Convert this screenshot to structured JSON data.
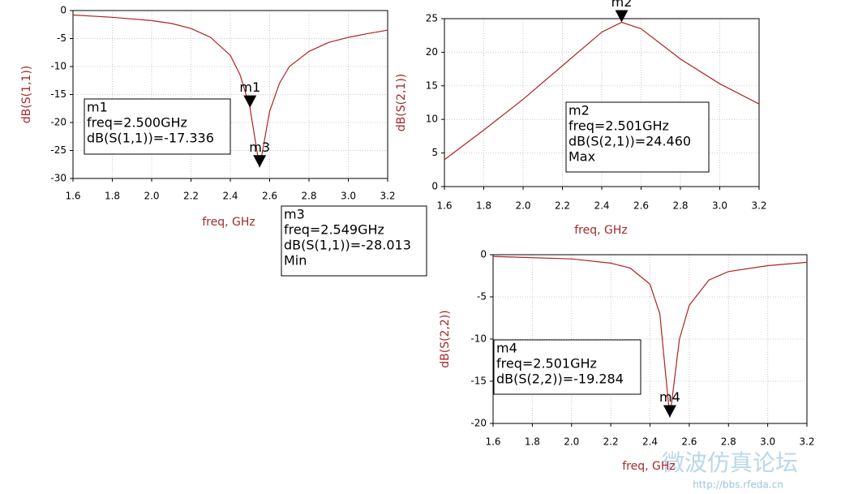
{
  "chart_data": [
    {
      "type": "line",
      "ylabel": "dB(S(1,1))",
      "xlabel": "freq, GHz",
      "color": "#b22222",
      "xlim": [
        1.6,
        3.2
      ],
      "ylim": [
        -30,
        0
      ],
      "xticks": [
        1.6,
        1.8,
        {
          "value": 2,
          "label": "2.0"
        },
        2.2,
        2.4,
        2.6,
        2.8,
        {
          "value": 3,
          "label": "3.0"
        },
        3.2
      ],
      "yticks": [
        0,
        -5,
        -10,
        -15,
        -20,
        -25,
        -30
      ],
      "grid": true,
      "x": [
        1.6,
        1.8,
        2.0,
        2.1,
        2.2,
        2.3,
        2.4,
        2.45,
        2.5,
        2.549,
        2.6,
        2.65,
        2.7,
        2.8,
        2.9,
        3.0,
        3.1,
        3.2
      ],
      "values": [
        -0.8,
        -1.2,
        -1.8,
        -2.3,
        -3.2,
        -4.8,
        -8,
        -11.5,
        -17.336,
        -28.013,
        -18,
        -13,
        -10,
        -7.3,
        -5.7,
        -4.8,
        -4.1,
        -3.5
      ],
      "markers": [
        {
          "name": "m1",
          "x": 2.5,
          "value": -17.336,
          "texts": [
            "freq=2.500GHz",
            "dB(S(1,1))=-17.336"
          ]
        },
        {
          "name": "m3",
          "x": 2.549,
          "value": -28.013,
          "texts": [
            "freq=2.549GHz",
            "dB(S(1,1))=-28.013",
            "Min"
          ]
        }
      ]
    },
    {
      "type": "line",
      "ylabel": "dB(S(2,1))",
      "xlabel": "freq, GHz",
      "color": "#b22222",
      "xlim": [
        1.6,
        3.2
      ],
      "ylim": [
        0,
        25
      ],
      "xticks": [
        1.6,
        1.8,
        {
          "value": 2,
          "label": "2.0"
        },
        2.2,
        2.4,
        2.6,
        2.8,
        {
          "value": 3,
          "label": "3.0"
        },
        3.2
      ],
      "yticks": [
        0,
        5,
        10,
        15,
        20,
        25
      ],
      "grid": true,
      "x": [
        1.6,
        1.8,
        2.0,
        2.2,
        2.4,
        2.501,
        2.6,
        2.8,
        3.0,
        3.2
      ],
      "values": [
        4,
        8.4,
        13,
        18,
        23,
        24.46,
        23.5,
        19,
        15.3,
        12.3
      ],
      "markers": [
        {
          "name": "m2",
          "x": 2.501,
          "value": 24.46,
          "texts": [
            "freq=2.501GHz",
            "dB(S(2,1))=24.460",
            "Max"
          ]
        }
      ]
    },
    {
      "type": "line",
      "ylabel": "dB(S(2,2))",
      "xlabel": "freq, GHz",
      "color": "#b22222",
      "xlim": [
        1.6,
        3.2
      ],
      "ylim": [
        -20,
        0
      ],
      "xticks": [
        1.6,
        1.8,
        {
          "value": 2,
          "label": "2.0"
        },
        2.2,
        2.4,
        2.6,
        2.8,
        {
          "value": 3,
          "label": "3.0"
        },
        3.2
      ],
      "yticks": [
        0,
        -5,
        -10,
        -15,
        -20
      ],
      "grid": true,
      "x": [
        1.6,
        2.0,
        2.2,
        2.3,
        2.4,
        2.45,
        2.501,
        2.55,
        2.6,
        2.7,
        2.8,
        3.0,
        3.2
      ],
      "values": [
        -0.2,
        -0.5,
        -1.0,
        -1.6,
        -3.5,
        -7,
        -19.284,
        -10,
        -6,
        -3,
        -2,
        -1.3,
        -0.9
      ],
      "markers": [
        {
          "name": "m4",
          "x": 2.501,
          "value": -19.284,
          "texts": [
            "freq=2.501GHz",
            "dB(S(2,2))=-19.284"
          ]
        }
      ]
    }
  ],
  "watermark": [
    "微波仿真论坛",
    "http://bbs.rfeda.cn"
  ]
}
